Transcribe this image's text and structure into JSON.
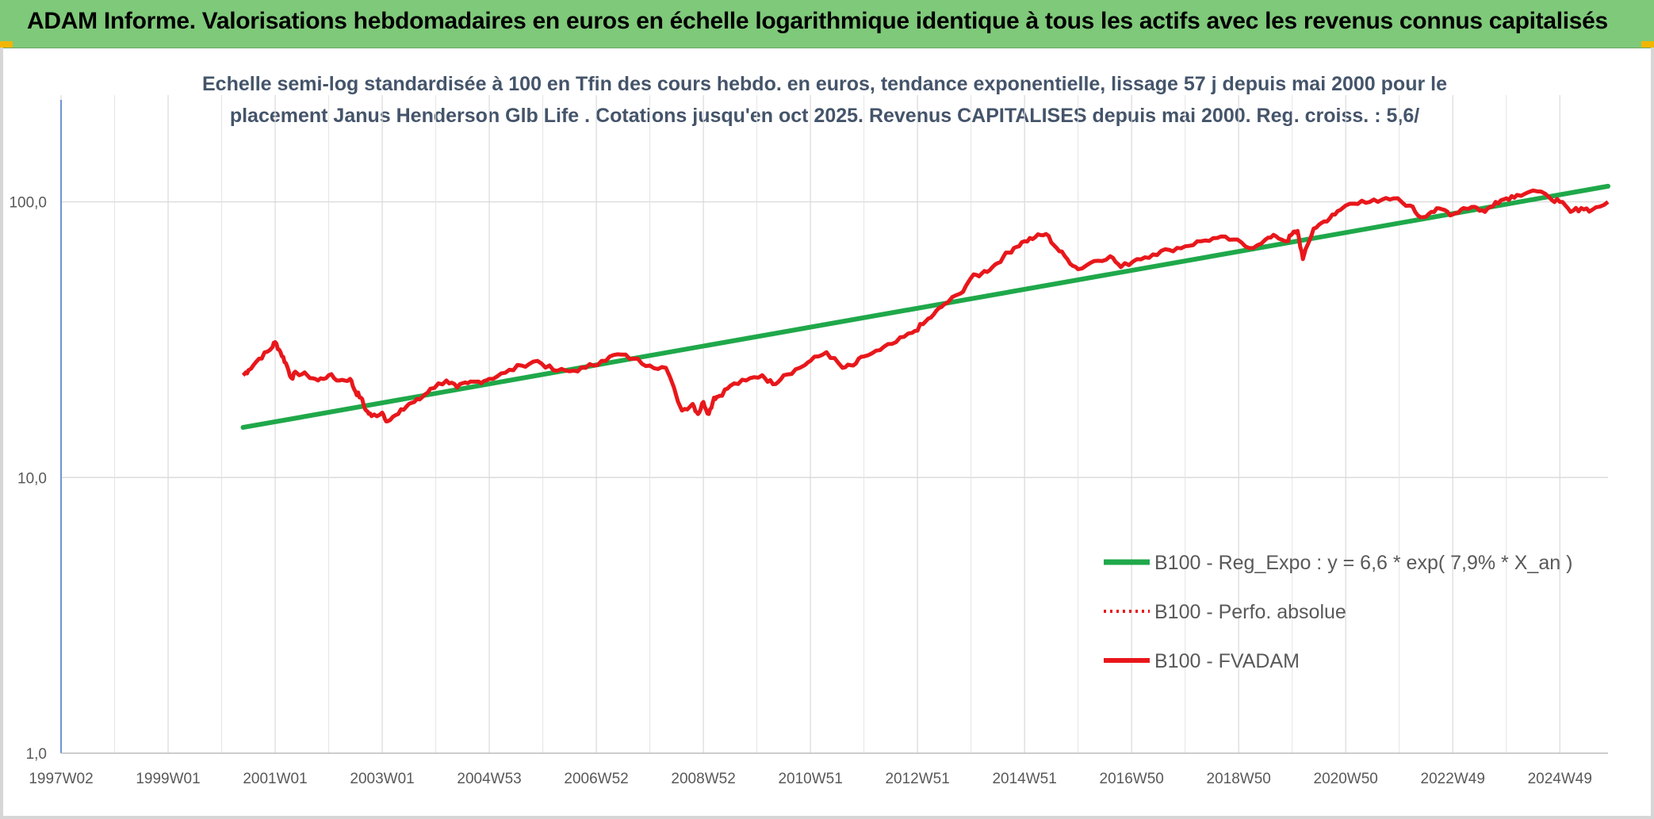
{
  "header": {
    "title": "ADAM Informe. Valorisations hebdomadaires en euros en échelle logarithmique identique à tous les actifs avec les revenus connus capitalisés"
  },
  "colors": {
    "header_bg": "#7fc97a",
    "accent_corner": "#f2b600",
    "trend": "#1fa84a",
    "fvadam": "#e8171b",
    "perfo": "#e8171b",
    "subtitle": "#44546a"
  },
  "chart_data": {
    "type": "line",
    "title_lines": [
      "Echelle semi-log standardisée à 100 en Tfin des cours hebdo. en euros, tendance exponentielle, lissage 57 j depuis mai 2000 pour le",
      "placement Janus Henderson Glb Life . Cotations jusqu'en oct 2025. Revenus CAPITALISES depuis mai 2000. Reg. croiss. : 5,6/"
    ],
    "y_scale": "log",
    "ylim": [
      1,
      200
    ],
    "y_tick_labels": [
      "100,0",
      "10,0",
      "1,0"
    ],
    "y_tick_values": [
      100,
      10,
      1
    ],
    "x_range": [
      1997.0,
      2025.9
    ],
    "x_tick_labels": [
      "1997W02",
      "1999W01",
      "2001W01",
      "2003W01",
      "2004W53",
      "2006W52",
      "2008W52",
      "2010W51",
      "2012W51",
      "2014W51",
      "2016W50",
      "2018W50",
      "2020W50",
      "2022W49",
      "2024W49"
    ],
    "x_tick_values": [
      1997.0,
      1999.0,
      2001.0,
      2003.0,
      2005.0,
      2007.0,
      2009.0,
      2011.0,
      2013.0,
      2015.0,
      2017.0,
      2019.0,
      2021.0,
      2023.0,
      2025.0
    ],
    "grid": "vertical and horizontal",
    "legend_position": "bottom-right",
    "series": [
      {
        "name": "B100 - Reg_Expo : y = 6,6 * exp( 7,9% *  X_an )",
        "style": "solid",
        "color": "#1fa84a",
        "x": [
          2000.4,
          2025.9
        ],
        "y": [
          15.2,
          114
        ]
      },
      {
        "name": "B100 - Perfo. absolue",
        "style": "dotted",
        "color": "#e8171b",
        "x": [],
        "y": []
      },
      {
        "name": "B100 - FVADAM",
        "style": "solid",
        "color": "#e8171b",
        "x": [
          2000.4,
          2000.5,
          2000.7,
          2000.9,
          2001.0,
          2001.1,
          2001.2,
          2001.3,
          2001.4,
          2001.6,
          2001.8,
          2002.0,
          2002.2,
          2002.4,
          2002.5,
          2002.6,
          2002.7,
          2002.8,
          2003.0,
          2003.1,
          2003.3,
          2003.5,
          2003.7,
          2003.9,
          2004.2,
          2004.4,
          2004.6,
          2004.8,
          2005.0,
          2005.3,
          2005.6,
          2005.9,
          2006.2,
          2006.5,
          2006.8,
          2007.1,
          2007.4,
          2007.7,
          2008.0,
          2008.3,
          2008.6,
          2008.8,
          2008.9,
          2009.0,
          2009.1,
          2009.2,
          2009.3,
          2009.5,
          2009.8,
          2010.1,
          2010.3,
          2010.5,
          2010.8,
          2011.0,
          2011.3,
          2011.6,
          2011.8,
          2012.0,
          2012.3,
          2012.6,
          2012.9,
          2013.1,
          2013.3,
          2013.5,
          2013.8,
          2014.0,
          2014.2,
          2014.4,
          2014.6,
          2014.8,
          2015.0,
          2015.2,
          2015.4,
          2015.6,
          2015.8,
          2016.0,
          2016.3,
          2016.6,
          2016.8,
          2017.1,
          2017.4,
          2017.7,
          2018.0,
          2018.3,
          2018.6,
          2018.9,
          2019.2,
          2019.5,
          2019.7,
          2019.9,
          2020.0,
          2020.1,
          2020.2,
          2020.4,
          2020.6,
          2020.8,
          2021.0,
          2021.3,
          2021.6,
          2021.9,
          2022.2,
          2022.4,
          2022.6,
          2022.8,
          2023.0,
          2023.2,
          2023.4,
          2023.6,
          2023.8,
          2024.0,
          2024.2,
          2024.5,
          2024.8,
          2025.0,
          2025.2,
          2025.4,
          2025.6,
          2025.9
        ],
        "y": [
          23.5,
          24.5,
          27,
          29,
          31,
          28.5,
          26,
          23,
          24,
          23.5,
          22.5,
          23.5,
          22.5,
          22.8,
          20.5,
          19.5,
          17.5,
          16.7,
          17.2,
          16.0,
          17.0,
          18.5,
          19.2,
          21.0,
          22.5,
          21.2,
          22.0,
          22.3,
          22.8,
          24.0,
          25.5,
          26.5,
          24.5,
          24.3,
          25.0,
          26.5,
          28.0,
          27.0,
          25.5,
          25.0,
          17.5,
          18.5,
          17.0,
          18.8,
          17.0,
          19.5,
          19.8,
          21.5,
          22.5,
          23.5,
          21.8,
          23.5,
          25.0,
          26.5,
          28.5,
          25.0,
          25.5,
          27.5,
          29.0,
          31.0,
          33.5,
          36.0,
          39.0,
          42.5,
          46.5,
          53.0,
          55.0,
          58.0,
          63.0,
          68.0,
          72.0,
          74.5,
          76.5,
          68.0,
          62.0,
          57.0,
          61.0,
          63.5,
          58.0,
          62.0,
          64.5,
          67.0,
          69.0,
          72.0,
          74.0,
          73.0,
          68.0,
          73.0,
          75.0,
          72.0,
          76.5,
          78.5,
          62.0,
          80.0,
          85.0,
          90.0,
          97.0,
          101.0,
          100.0,
          103.0,
          97.0,
          88.0,
          92.0,
          94.0,
          90.0,
          95.0,
          96.0,
          92.0,
          100.0,
          103.0,
          106.0,
          110.0,
          104.0,
          100.0,
          92.0,
          95.0,
          93.5,
          100.0
        ]
      }
    ]
  }
}
